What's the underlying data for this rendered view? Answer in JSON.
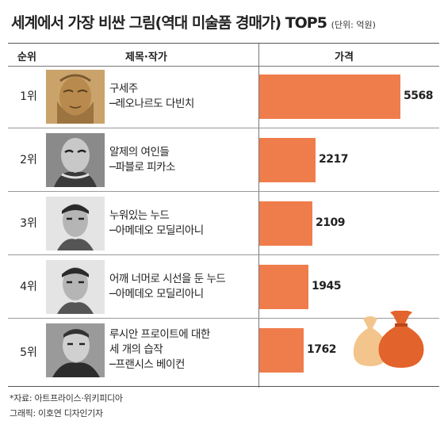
{
  "title": "세계에서 가장 비싼 그림(역대 미술품 경매가) TOP5",
  "unit": "(단위: 억원)",
  "headers": {
    "rank": "순위",
    "work": "제목·작가",
    "price": "가격"
  },
  "rows": [
    {
      "rank": "1위",
      "line1": "구세주",
      "line2": "─레오나르도 다빈치",
      "line3": ""
    },
    {
      "rank": "2위",
      "line1": "알제의 여인들",
      "line2": "─파블로 피카소",
      "line3": ""
    },
    {
      "rank": "3위",
      "line1": "누워있는 누드",
      "line2": "─아메데오 모딜리아니",
      "line3": ""
    },
    {
      "rank": "4위",
      "line1": "어깨 너머로 시선을 둔 누드",
      "line2": "─아메데오 모딜리아니",
      "line3": ""
    },
    {
      "rank": "5위",
      "line1": "루시안 프로이트에 대한",
      "line2": "세 개의 습작",
      "line3": "─프랜시스 베이컨"
    }
  ],
  "chart_data": {
    "type": "bar",
    "orientation": "horizontal",
    "categories": [
      "1위",
      "2위",
      "3위",
      "4위",
      "5위"
    ],
    "values": [
      5568,
      2217,
      2109,
      1945,
      1762
    ],
    "value_labels": [
      "5568",
      "2217",
      "2109",
      "1945",
      "1762"
    ],
    "bar_color": "#ef7d4c"
  },
  "footer": {
    "source": "*자료: 아트프라이스·위키피디아",
    "credit": "그래픽: 이호연 디자인기자"
  }
}
